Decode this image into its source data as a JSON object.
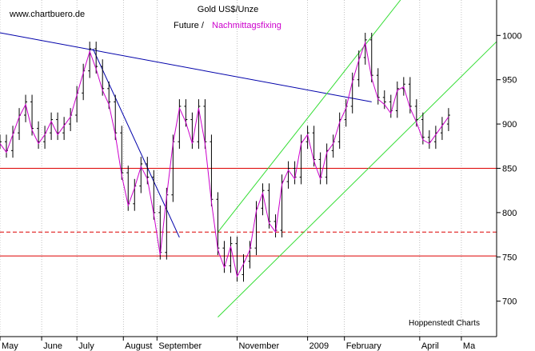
{
  "header": {
    "website": "www.chartbuero.de",
    "title": "Gold US$/Unze",
    "subtitle_part1": "Future /",
    "subtitle_part2": "Nachmittagsfixing",
    "credit": "Hoppenstedt Charts"
  },
  "colors": {
    "background": "#ffffff",
    "price_bars": "#000000",
    "fixing_line": "#cc00cc",
    "downtrend_line": "#0000aa",
    "channel_lines": "#33dd33",
    "support_lines": "#dd0000",
    "grid": "#999999"
  },
  "chart_data": {
    "type": "line",
    "title": "Gold US$/Unze",
    "subtitle": "Future / Nachmittagsfixing",
    "y_axis": {
      "min": 660,
      "max": 1040,
      "side": "right",
      "ticks": [
        700,
        750,
        800,
        850,
        900,
        950,
        1000
      ]
    },
    "x_axis": {
      "min": 0,
      "max": 310,
      "tick_labels": [
        {
          "label": "May",
          "pos": 0
        },
        {
          "label": "June",
          "pos": 26
        },
        {
          "label": "July",
          "pos": 48
        },
        {
          "label": "August",
          "pos": 77
        },
        {
          "label": "September",
          "pos": 98
        },
        {
          "label": "November",
          "pos": 148
        },
        {
          "label": "2009",
          "pos": 192
        },
        {
          "label": "February",
          "pos": 215
        },
        {
          "label": "April",
          "pos": 262
        },
        {
          "label": "Ma",
          "pos": 288
        }
      ]
    },
    "grid": "vertical",
    "series": [
      {
        "name": "Future",
        "style": "ohlc-bars",
        "x": [
          0,
          4,
          8,
          12,
          16,
          20,
          24,
          28,
          32,
          36,
          40,
          44,
          48,
          52,
          56,
          60,
          64,
          68,
          72,
          76,
          80,
          84,
          88,
          92,
          96,
          100,
          104,
          108,
          112,
          116,
          120,
          124,
          128,
          132,
          136,
          140,
          144,
          148,
          152,
          156,
          160,
          164,
          168,
          172,
          176,
          180,
          184,
          188,
          192,
          196,
          200,
          204,
          208,
          212,
          216,
          220,
          224,
          228,
          232,
          236,
          240,
          244,
          248,
          252,
          256,
          260,
          264,
          268,
          272,
          276,
          280
        ],
        "values": [
          880,
          870,
          890,
          910,
          925,
          895,
          880,
          890,
          905,
          890,
          900,
          910,
          935,
          960,
          985,
          965,
          940,
          925,
          890,
          845,
          810,
          830,
          855,
          840,
          800,
          755,
          820,
          880,
          920,
          905,
          880,
          920,
          880,
          815,
          760,
          740,
          765,
          730,
          745,
          760,
          805,
          825,
          790,
          780,
          835,
          850,
          840,
          880,
          890,
          860,
          840,
          870,
          880,
          905,
          920,
          950,
          975,
          995,
          955,
          930,
          925,
          915,
          940,
          945,
          920,
          905,
          885,
          880,
          890,
          900,
          910
        ]
      },
      {
        "name": "Nachmittagsfixing",
        "style": "line",
        "x": [
          0,
          4,
          8,
          12,
          16,
          20,
          24,
          28,
          32,
          36,
          40,
          44,
          48,
          52,
          56,
          60,
          64,
          68,
          72,
          76,
          80,
          84,
          88,
          92,
          96,
          100,
          104,
          108,
          112,
          116,
          120,
          124,
          128,
          132,
          136,
          140,
          144,
          148,
          152,
          156,
          160,
          164,
          168,
          172,
          176,
          180,
          184,
          188,
          192,
          196,
          200,
          204,
          208,
          212,
          216,
          220,
          224,
          228,
          232,
          236,
          240,
          244,
          248,
          252,
          256,
          260,
          264,
          268,
          272,
          276,
          280
        ],
        "values": [
          878,
          868,
          888,
          908,
          922,
          893,
          878,
          888,
          903,
          888,
          898,
          908,
          933,
          958,
          982,
          962,
          938,
          922,
          888,
          842,
          808,
          828,
          852,
          838,
          798,
          752,
          818,
          878,
          918,
          902,
          878,
          918,
          878,
          812,
          758,
          738,
          762,
          728,
          742,
          758,
          802,
          822,
          788,
          778,
          832,
          848,
          838,
          878,
          888,
          858,
          838,
          868,
          878,
          902,
          918,
          948,
          972,
          992,
          952,
          928,
          922,
          912,
          938,
          942,
          918,
          902,
          882,
          878,
          888,
          898,
          908
        ]
      }
    ],
    "trendlines": [
      {
        "kind": "downtrend",
        "color": "#0000aa",
        "from": [
          0,
          1003
        ],
        "to": [
          232,
          925
        ]
      },
      {
        "kind": "downtrend",
        "color": "#0000aa",
        "from": [
          58,
          985
        ],
        "to": [
          112,
          772
        ]
      },
      {
        "kind": "channel-upper",
        "color": "#33dd33",
        "from": [
          136,
          778
        ],
        "to": [
          250,
          1040
        ]
      },
      {
        "kind": "channel-lower",
        "color": "#33dd33",
        "from": [
          136,
          682
        ],
        "to": [
          310,
          993
        ]
      }
    ],
    "horizontal_levels": [
      {
        "value": 850,
        "style": "solid",
        "color": "#dd0000"
      },
      {
        "value": 778,
        "style": "dashed",
        "color": "#dd0000"
      },
      {
        "value": 751,
        "style": "solid",
        "color": "#dd0000"
      }
    ]
  }
}
